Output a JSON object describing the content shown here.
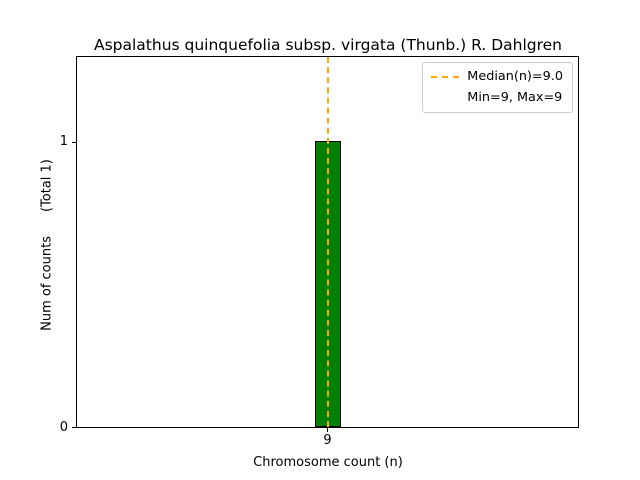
{
  "figure": {
    "title": "Aspalathus quinquefolia subsp. virgata (Thunb.) R. Dahlgren",
    "xlabel": "Chromosome count (n)",
    "ylabel_main": "Num of counts",
    "ylabel_total": "(Total 1)",
    "xticks": [
      "9"
    ],
    "yticks": [
      "0",
      "1"
    ],
    "legend": {
      "median_label": "Median(n)=9.0",
      "minmax_label": "Min=9, Max=9"
    },
    "colors": {
      "bar_fill": "#008000",
      "bar_edge": "#000000",
      "median_line": "#ffa500",
      "legend_border": "#cccccc"
    }
  },
  "chart_data": {
    "type": "bar",
    "title": "Aspalathus quinquefolia subsp. virgata (Thunb.) R. Dahlgren",
    "categories": [
      "9"
    ],
    "values": [
      1
    ],
    "xlabel": "Chromosome count (n)",
    "ylabel": "Num of counts (Total 1)",
    "ylim": [
      0,
      1.3
    ],
    "yticks": [
      0,
      1
    ],
    "grid": false,
    "legend_position": "upper right",
    "bar_color": "#008000",
    "bar_edge_color": "#000000",
    "median": 9.0,
    "min": 9,
    "max": 9,
    "total_counts": 1,
    "median_line": {
      "x": 9.0,
      "color": "#ffa500",
      "style": "dashed",
      "label": "Median(n)=9.0"
    },
    "annotations": [
      "Min=9, Max=9"
    ]
  }
}
